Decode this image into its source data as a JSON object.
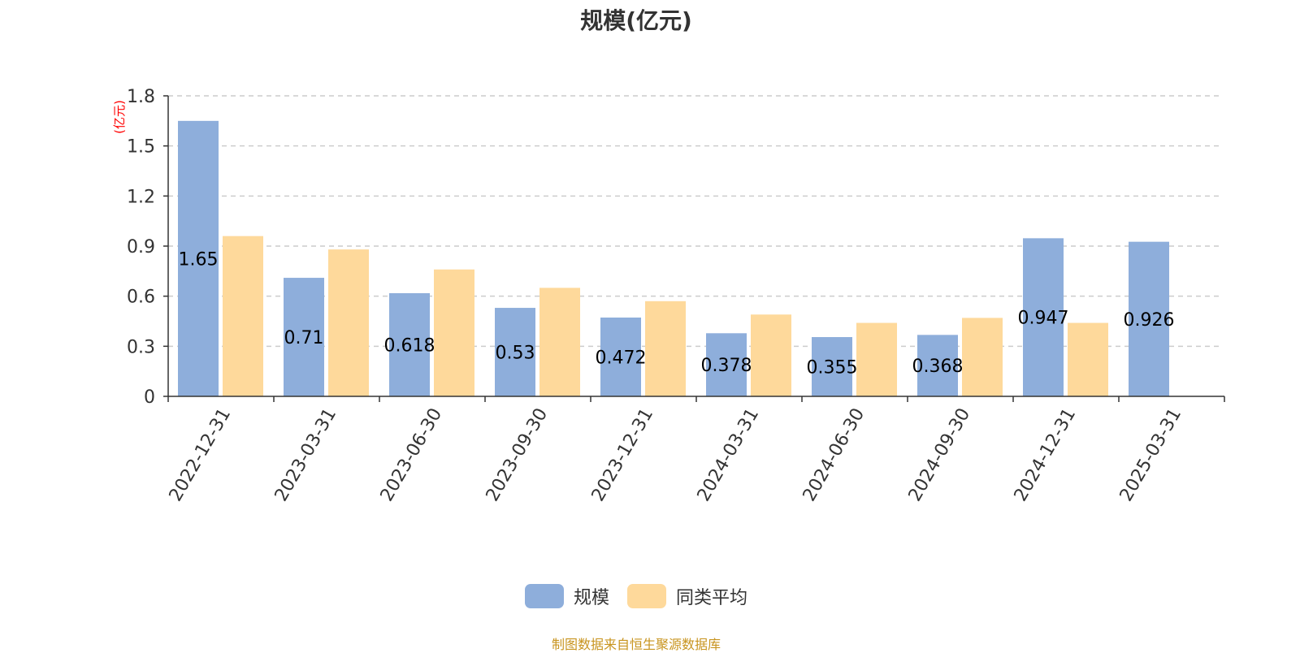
{
  "chart_data": {
    "type": "bar",
    "title": "规模(亿元)",
    "ylabel": "(亿元)",
    "xlabel": "",
    "ylim": [
      0,
      1.8
    ],
    "yticks": [
      "0",
      "0.3",
      "0.6",
      "0.9",
      "1.2",
      "1.5",
      "1.8"
    ],
    "grid": true,
    "legend_position": "bottom",
    "categories": [
      "2022-12-31",
      "2023-03-31",
      "2023-06-30",
      "2023-09-30",
      "2023-12-31",
      "2024-03-31",
      "2024-06-30",
      "2024-09-30",
      "2024-12-31",
      "2025-03-31"
    ],
    "series": [
      {
        "name": "规模",
        "color": "#8eaedb",
        "values": [
          1.65,
          0.71,
          0.618,
          0.53,
          0.472,
          0.378,
          0.355,
          0.368,
          0.947,
          0.926
        ],
        "labels": [
          "1.65",
          "0.71",
          "0.618",
          "0.53",
          "0.472",
          "0.378",
          "0.355",
          "0.368",
          "0.947",
          "0.926"
        ]
      },
      {
        "name": "同类平均",
        "color": "#fed99b",
        "values": [
          0.96,
          0.88,
          0.76,
          0.65,
          0.57,
          0.49,
          0.44,
          0.47,
          0.44,
          null
        ]
      }
    ],
    "source_note": "制图数据来自恒生聚源数据库"
  }
}
